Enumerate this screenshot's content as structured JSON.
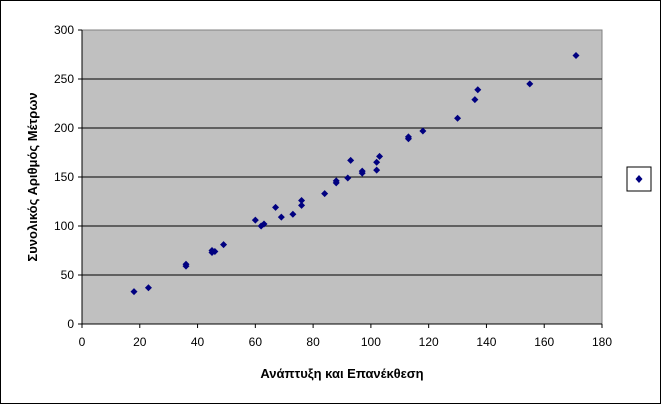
{
  "chart_data": {
    "type": "scatter",
    "title": "",
    "xlabel": "Ανάπτυξη και Επανέκθεση",
    "ylabel": "Συνολικός Αριθμός Μέτρων",
    "xlim": [
      0,
      180
    ],
    "ylim": [
      0,
      300
    ],
    "xticks": [
      0,
      20,
      40,
      60,
      80,
      100,
      120,
      140,
      160,
      180
    ],
    "yticks": [
      0,
      50,
      100,
      150,
      200,
      250,
      300
    ],
    "grid": "horizontal",
    "legend": "right",
    "colors": {
      "plot_bg": "#c0c0c0",
      "marker": "#000080",
      "grid": "#000000"
    },
    "series": [
      {
        "points": [
          [
            18,
            33
          ],
          [
            23,
            37
          ],
          [
            36,
            59
          ],
          [
            36,
            61
          ],
          [
            45,
            73
          ],
          [
            46,
            74
          ],
          [
            45,
            75
          ],
          [
            49,
            81
          ],
          [
            60,
            106
          ],
          [
            62,
            100
          ],
          [
            63,
            102
          ],
          [
            67,
            119
          ],
          [
            69,
            109
          ],
          [
            73,
            112
          ],
          [
            76,
            121
          ],
          [
            76,
            126
          ],
          [
            84,
            133
          ],
          [
            88,
            144
          ],
          [
            88,
            146
          ],
          [
            92,
            149
          ],
          [
            93,
            167
          ],
          [
            97,
            154
          ],
          [
            97,
            156
          ],
          [
            102,
            157
          ],
          [
            102,
            165
          ],
          [
            103,
            171
          ],
          [
            113,
            189
          ],
          [
            113,
            191
          ],
          [
            118,
            197
          ],
          [
            130,
            210
          ],
          [
            136,
            229
          ],
          [
            137,
            239
          ],
          [
            155,
            245
          ],
          [
            171,
            274
          ]
        ]
      }
    ]
  }
}
